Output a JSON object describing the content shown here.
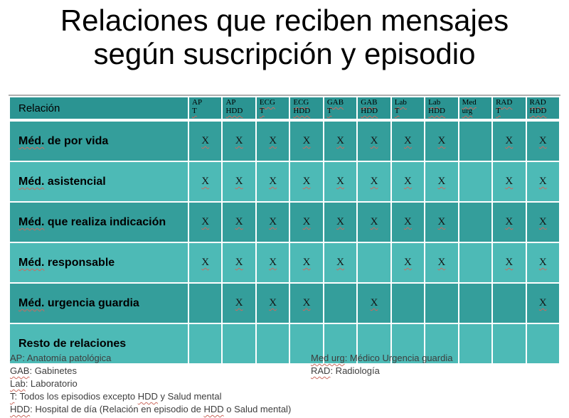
{
  "title": {
    "line1": "Relaciones que reciben mensajes",
    "line2": "según suscripción y episodio"
  },
  "table": {
    "corner": [
      {
        "t": "Relación",
        "sq": false
      }
    ],
    "x_mark": "X",
    "columns": [
      {
        "top": [
          {
            "t": "AP",
            "sq": false
          }
        ],
        "bottom": [
          {
            "t": "T",
            "sq": true
          }
        ]
      },
      {
        "top": [
          {
            "t": "AP",
            "sq": false
          }
        ],
        "bottom": [
          {
            "t": "HDD",
            "sq": true
          }
        ]
      },
      {
        "top": [
          {
            "t": "ECG",
            "sq": true
          }
        ],
        "bottom": [
          {
            "t": "T",
            "sq": true
          }
        ]
      },
      {
        "top": [
          {
            "t": "ECG",
            "sq": true
          }
        ],
        "bottom": [
          {
            "t": "HDD",
            "sq": true
          }
        ]
      },
      {
        "top": [
          {
            "t": "GAB",
            "sq": true
          }
        ],
        "bottom": [
          {
            "t": "T",
            "sq": true
          }
        ]
      },
      {
        "top": [
          {
            "t": "GAB",
            "sq": true
          }
        ],
        "bottom": [
          {
            "t": "HDD",
            "sq": true
          }
        ]
      },
      {
        "top": [
          {
            "t": "Lab",
            "sq": true
          }
        ],
        "bottom": [
          {
            "t": "T",
            "sq": true
          }
        ]
      },
      {
        "top": [
          {
            "t": "Lab",
            "sq": true
          }
        ],
        "bottom": [
          {
            "t": "HDD",
            "sq": true
          }
        ]
      },
      {
        "top": [
          {
            "t": "Med",
            "sq": true
          }
        ],
        "bottom": [
          {
            "t": "urg",
            "sq": true
          }
        ]
      },
      {
        "top": [
          {
            "t": "RAD",
            "sq": true
          }
        ],
        "bottom": [
          {
            "t": "T",
            "sq": true
          }
        ]
      },
      {
        "top": [
          {
            "t": "RAD",
            "sq": true
          }
        ],
        "bottom": [
          {
            "t": "HDD",
            "sq": true
          }
        ]
      }
    ],
    "rows": [
      {
        "label": [
          {
            "t": "Méd.",
            "sq": true
          },
          {
            "t": " de por vida",
            "sq": false
          }
        ],
        "cells": [
          1,
          1,
          1,
          1,
          1,
          1,
          1,
          1,
          0,
          1,
          1
        ]
      },
      {
        "label": [
          {
            "t": "Méd.",
            "sq": true
          },
          {
            "t": " asistencial",
            "sq": false
          }
        ],
        "cells": [
          1,
          1,
          1,
          1,
          1,
          1,
          1,
          1,
          0,
          1,
          1
        ]
      },
      {
        "label": [
          {
            "t": "Méd.",
            "sq": true
          },
          {
            "t": " que realiza indicación",
            "sq": false
          }
        ],
        "cells": [
          1,
          1,
          1,
          1,
          1,
          1,
          1,
          1,
          0,
          1,
          1
        ]
      },
      {
        "label": [
          {
            "t": "Méd.",
            "sq": true
          },
          {
            "t": " responsable",
            "sq": false
          }
        ],
        "cells": [
          1,
          1,
          1,
          1,
          1,
          0,
          1,
          1,
          0,
          1,
          1
        ]
      },
      {
        "label": [
          {
            "t": "Méd.",
            "sq": true
          },
          {
            "t": " urgencia guardia",
            "sq": false
          }
        ],
        "cells": [
          0,
          1,
          1,
          1,
          0,
          1,
          0,
          0,
          0,
          0,
          1
        ]
      },
      {
        "label": [
          {
            "t": "Resto de relaciones",
            "sq": false
          }
        ],
        "cells": [
          0,
          0,
          0,
          0,
          0,
          0,
          0,
          0,
          0,
          0,
          0
        ]
      }
    ]
  },
  "footnotes": {
    "left": [
      [
        {
          "t": "AP: Anatomía patológica",
          "sq": false
        }
      ],
      [
        {
          "t": "GAB",
          "sq": true
        },
        {
          "t": ": Gabinetes",
          "sq": false
        }
      ],
      [
        {
          "t": "Lab",
          "sq": true
        },
        {
          "t": ": Laboratorio",
          "sq": false
        }
      ],
      [
        {
          "t": "T",
          "sq": true
        },
        {
          "t": ": Todos los episodios excepto ",
          "sq": false
        },
        {
          "t": "HDD",
          "sq": true
        },
        {
          "t": " y Salud mental",
          "sq": false
        }
      ],
      [
        {
          "t": "HDD",
          "sq": true
        },
        {
          "t": ": Hospital de día (Relación en episodio de ",
          "sq": false
        },
        {
          "t": "HDD",
          "sq": true
        },
        {
          "t": " o Salud mental)",
          "sq": false
        }
      ]
    ],
    "right": [
      [
        {
          "t": "Med urg",
          "sq": true
        },
        {
          "t": ": Médico Urgencia guardia",
          "sq": false
        }
      ],
      [
        {
          "t": "RAD",
          "sq": true
        },
        {
          "t": ": Radiología",
          "sq": false
        }
      ]
    ]
  },
  "colors": {
    "title_text": "#000000",
    "header_bg": "#2b9492",
    "row_dark": "#349e9b",
    "row_light": "#4dbab6",
    "grid": "#ffffff",
    "top_border": "#aeaeae",
    "squiggle": "#cb6a5f",
    "footnote_text": "#3d3d3d"
  }
}
